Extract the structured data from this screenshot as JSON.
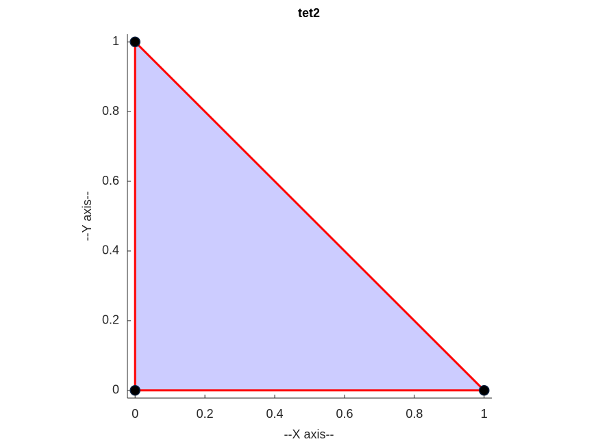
{
  "chart_data": {
    "type": "patch",
    "title": "tet2",
    "xlabel": "--X axis--",
    "ylabel": "--Y axis--",
    "x": [
      0,
      1,
      0
    ],
    "y": [
      0,
      0,
      1
    ],
    "face_color": "#ccccff",
    "edge_color": "#ff0000",
    "marker_color": "#000000",
    "xlim": [
      -0.022,
      1.022
    ],
    "ylim": [
      -0.022,
      1.022
    ],
    "xticks": [
      0,
      0.2,
      0.4,
      0.6,
      0.8,
      1
    ],
    "yticks": [
      0,
      0.2,
      0.4,
      0.6,
      0.8,
      1
    ]
  }
}
